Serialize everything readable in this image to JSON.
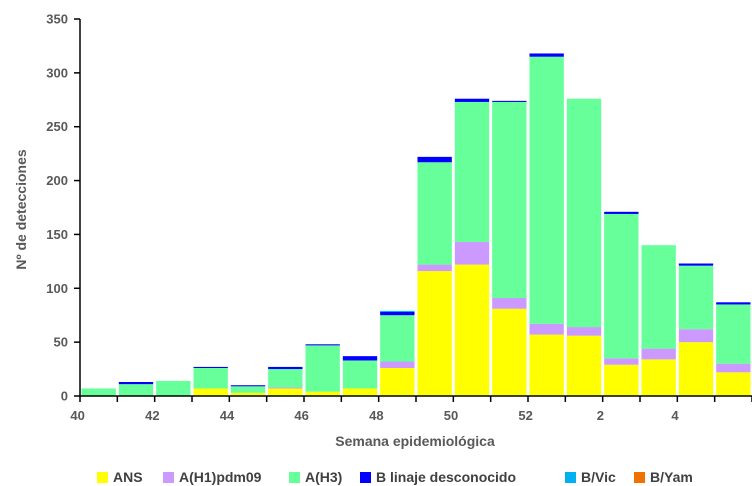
{
  "chart_data": {
    "type": "bar",
    "stacked": true,
    "xlabel": "Semana epidemiológica",
    "ylabel": "Nº de detecciones",
    "ylim": [
      0,
      350
    ],
    "yticks": [
      0,
      50,
      100,
      150,
      200,
      250,
      300,
      350
    ],
    "categories": [
      "40",
      "41",
      "42",
      "43",
      "44",
      "45",
      "46",
      "47",
      "48",
      "49",
      "50",
      "51",
      "52",
      "1",
      "2",
      "3",
      "4",
      "5"
    ],
    "xtick_labels": [
      "40",
      "",
      "42",
      "",
      "44",
      "",
      "46",
      "",
      "48",
      "",
      "50",
      "",
      "52",
      "",
      "2",
      "",
      "4",
      ""
    ],
    "grid": false,
    "legend_position": "bottom",
    "series": [
      {
        "name": "ANS",
        "color": "#FFFF00",
        "values": [
          0,
          0,
          0,
          7,
          3,
          7,
          4,
          7,
          26,
          116,
          122,
          81,
          57,
          56,
          29,
          34,
          50,
          22
        ]
      },
      {
        "name": "A(H1)pdm09",
        "color": "#CC99FF",
        "values": [
          0,
          0,
          0,
          0,
          0,
          1,
          0,
          0,
          6,
          6,
          21,
          10,
          10,
          8,
          6,
          10,
          12,
          8
        ]
      },
      {
        "name": "A(H3)",
        "color": "#66FF99",
        "values": [
          7,
          11,
          14,
          19,
          6,
          17,
          43,
          26,
          43,
          95,
          130,
          182,
          248,
          212,
          134,
          96,
          59,
          55
        ]
      },
      {
        "name": "B linaje desconocido",
        "color": "#0000FF",
        "values": [
          0,
          2,
          0,
          1,
          1,
          2,
          1,
          4,
          3,
          5,
          3,
          1,
          3,
          0,
          2,
          0,
          2,
          2
        ]
      },
      {
        "name": "B/Vic",
        "color": "#00B0F0",
        "values": [
          0,
          0,
          0,
          0,
          0,
          0,
          0,
          0,
          1,
          0,
          0,
          0,
          0,
          0,
          0,
          0,
          0,
          0
        ]
      },
      {
        "name": "B/Yam",
        "color": "#F07000",
        "values": [
          0,
          0,
          0,
          0,
          0,
          0,
          0,
          0,
          0,
          0,
          0,
          0,
          0,
          0,
          0,
          0,
          0,
          0
        ]
      }
    ]
  }
}
